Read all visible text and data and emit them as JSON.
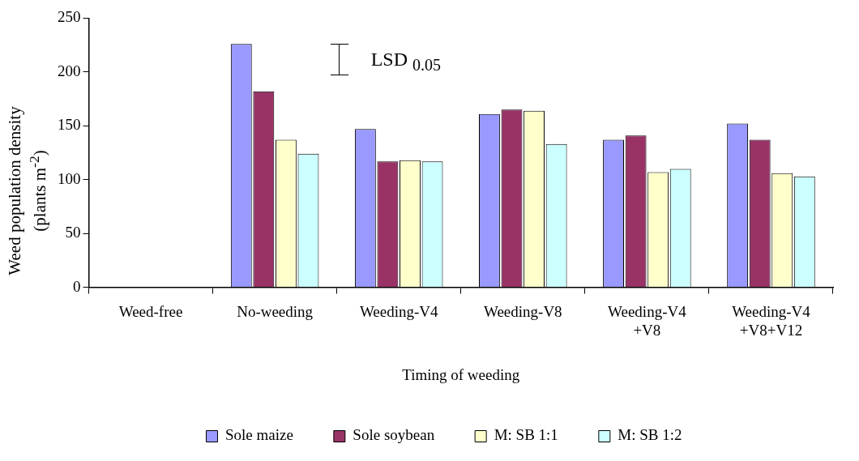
{
  "chart_data": {
    "type": "bar",
    "xlabel": "Timing of weeding",
    "ylabel": "Weed population density (plants m$^{-2}$)",
    "categories": [
      "Weed-free",
      "No-weeding",
      "Weeding-V4",
      "Weeding-V8",
      "Weeding-V4 +V8",
      "Weeding-V4 +V8+V12"
    ],
    "series": [
      {
        "name": "Sole maize",
        "color": "#9999ff",
        "values": [
          0,
          226,
          147,
          161,
          137,
          152
        ]
      },
      {
        "name": "Sole soybean",
        "color": "#993366",
        "values": [
          0,
          182,
          117,
          165,
          141,
          137
        ]
      },
      {
        "name": "M: SB 1:1",
        "color": "#ffffcc",
        "values": [
          0,
          137,
          118,
          164,
          107,
          106
        ]
      },
      {
        "name": "M: SB 1:2",
        "color": "#ccffff",
        "values": [
          0,
          124,
          117,
          133,
          110,
          103
        ]
      }
    ],
    "ylim": [
      0,
      250
    ],
    "yticks": [
      0,
      50,
      100,
      150,
      200,
      250
    ],
    "grid": false,
    "legend": "bottom",
    "annotations": [
      "LSD $_{0.05}$"
    ]
  }
}
